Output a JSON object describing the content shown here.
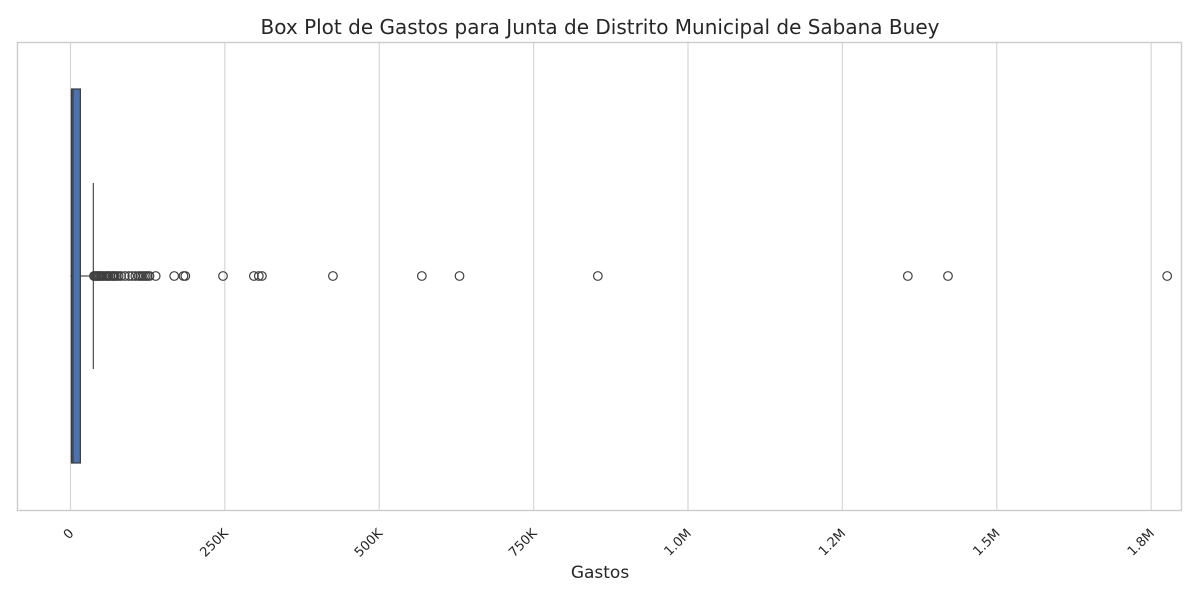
{
  "chart_data": {
    "type": "box",
    "orientation": "horizontal",
    "title": "Box Plot de Gastos para Junta de Distrito Municipal de Sabana Buey",
    "xlabel": "Gastos",
    "ylabel": "",
    "xlim": [
      -85000,
      1800000
    ],
    "grid": true,
    "x_ticks": [
      {
        "value": 0,
        "label": "0"
      },
      {
        "value": 250000,
        "label": "250K"
      },
      {
        "value": 500000,
        "label": "500K"
      },
      {
        "value": 750000,
        "label": "750K"
      },
      {
        "value": 1000000,
        "label": "1.0M"
      },
      {
        "value": 1250000,
        "label": "1.2M"
      },
      {
        "value": 1500000,
        "label": "1.5M"
      },
      {
        "value": 1750000,
        "label": "1.8M"
      }
    ],
    "box": {
      "min": 0,
      "q1": 1500,
      "median": 4000,
      "q3": 16000,
      "whisker_low": 0,
      "whisker_high": 37000,
      "color": "#4c72b0"
    },
    "outliers": [
      38000,
      40000,
      42000,
      44000,
      46000,
      48000,
      50000,
      52000,
      55000,
      58000,
      60000,
      62000,
      65000,
      68000,
      70000,
      72000,
      75000,
      78000,
      82000,
      88000,
      95000,
      100000,
      105000,
      110000,
      113000,
      116000,
      119000,
      122000,
      125000,
      128000,
      138000,
      168000,
      183000,
      186000,
      247000,
      297000,
      305000,
      310000,
      425000,
      569000,
      630000,
      854000,
      1356000,
      1421000,
      1776000
    ]
  }
}
